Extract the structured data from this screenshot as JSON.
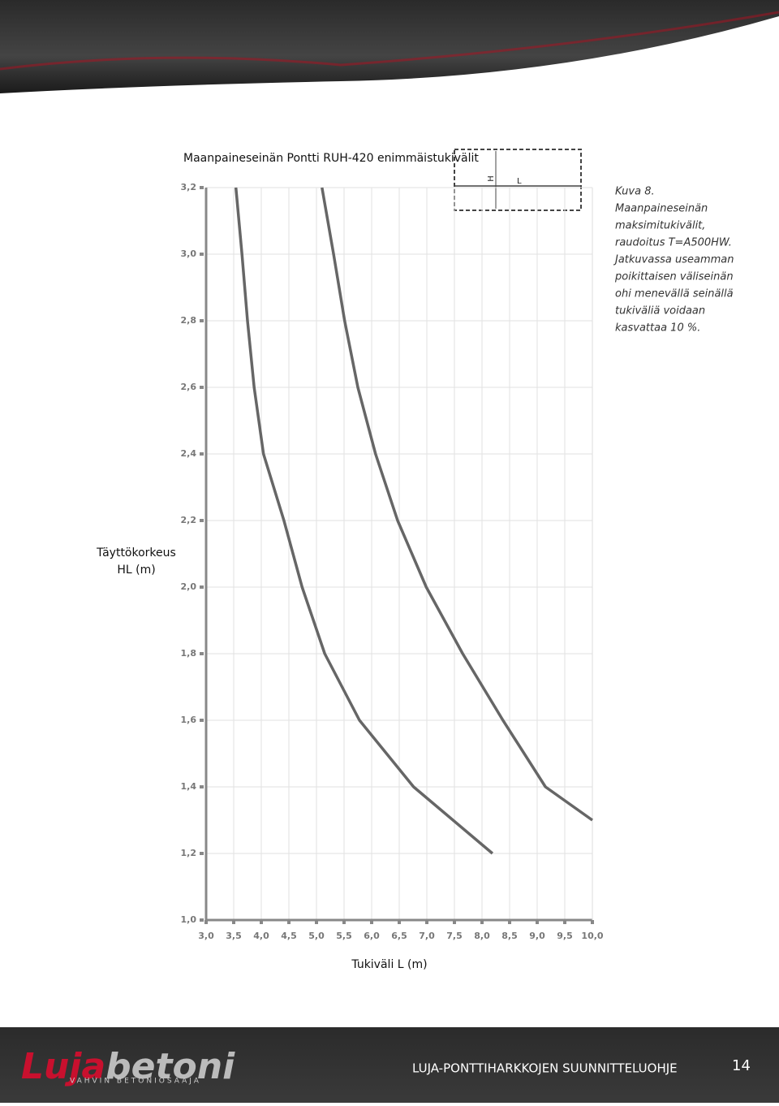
{
  "chart_data": {
    "type": "line",
    "title": "Maanpaineseinän Pontti RUH-420 enimmäistukivälit",
    "y_label_lines": [
      "Täyttökorkeus",
      "HL (m)"
    ],
    "x_label": "Tukiväli L (m)",
    "xlim": [
      3.0,
      10.0
    ],
    "ylim": [
      1.0,
      3.2
    ],
    "xticks": [
      {
        "value": 3.0,
        "label": "3,0"
      },
      {
        "value": 3.5,
        "label": "3,5"
      },
      {
        "value": 4.0,
        "label": "4,0"
      },
      {
        "value": 4.5,
        "label": "4,5"
      },
      {
        "value": 5.0,
        "label": "5,0"
      },
      {
        "value": 5.5,
        "label": "5,5"
      },
      {
        "value": 6.0,
        "label": "6,0"
      },
      {
        "value": 6.5,
        "label": "6,5"
      },
      {
        "value": 7.0,
        "label": "7,0"
      },
      {
        "value": 7.5,
        "label": "7,5"
      },
      {
        "value": 8.0,
        "label": "8,0"
      },
      {
        "value": 8.5,
        "label": "8,5"
      },
      {
        "value": 9.0,
        "label": "9,0"
      },
      {
        "value": 9.5,
        "label": "9,5"
      },
      {
        "value": 10.0,
        "label": "10,0"
      }
    ],
    "yticks": [
      {
        "value": 1.0,
        "label": "1,0"
      },
      {
        "value": 1.2,
        "label": "1,2"
      },
      {
        "value": 1.4,
        "label": "1,4"
      },
      {
        "value": 1.6,
        "label": "1,6"
      },
      {
        "value": 1.8,
        "label": "1,8"
      },
      {
        "value": 2.0,
        "label": "2,0"
      },
      {
        "value": 2.2,
        "label": "2,2"
      },
      {
        "value": 2.4,
        "label": "2,4"
      },
      {
        "value": 2.6,
        "label": "2,6"
      },
      {
        "value": 2.8,
        "label": "2,8"
      },
      {
        "value": 3.0,
        "label": "3,0"
      },
      {
        "value": 3.2,
        "label": "3,2"
      }
    ],
    "grid": true,
    "series": [
      {
        "color": "#666666",
        "x": [
          3.54,
          3.65,
          3.75,
          3.87,
          4.04,
          4.41,
          4.74,
          5.15,
          5.78,
          6.76,
          8.19
        ],
        "values": [
          3.2,
          3.0,
          2.8,
          2.6,
          2.4,
          2.2,
          2.0,
          1.8,
          1.6,
          1.4,
          1.2
        ]
      },
      {
        "color": "#666666",
        "x": [
          5.1,
          5.31,
          5.51,
          5.75,
          6.07,
          6.47,
          6.99,
          7.65,
          8.38,
          9.15,
          10.0
        ],
        "values": [
          3.2,
          3.0,
          2.8,
          2.6,
          2.4,
          2.2,
          2.0,
          1.8,
          1.6,
          1.4,
          1.3
        ]
      }
    ]
  },
  "diagram": {
    "labels": [
      "H",
      "L"
    ]
  },
  "caption": {
    "lines": [
      "Kuva 8.",
      "Maanpaineseinän",
      "maksimitukivälit,",
      "raudoitus T=A500HW.",
      "Jatkuvassa useamman",
      "poikittaisen väliseinän",
      "ohi menevällä seinällä",
      "tukiväliä voidaan",
      "kasvattaa 10 %."
    ]
  },
  "footer": {
    "logo_parts": [
      "Luja",
      "betoni"
    ],
    "tagline": "VAHVIN BETONIOSAAJA",
    "title": "LUJA-PONTTIHARKKOJEN SUUNNITTELUOHJE",
    "page": "14"
  }
}
